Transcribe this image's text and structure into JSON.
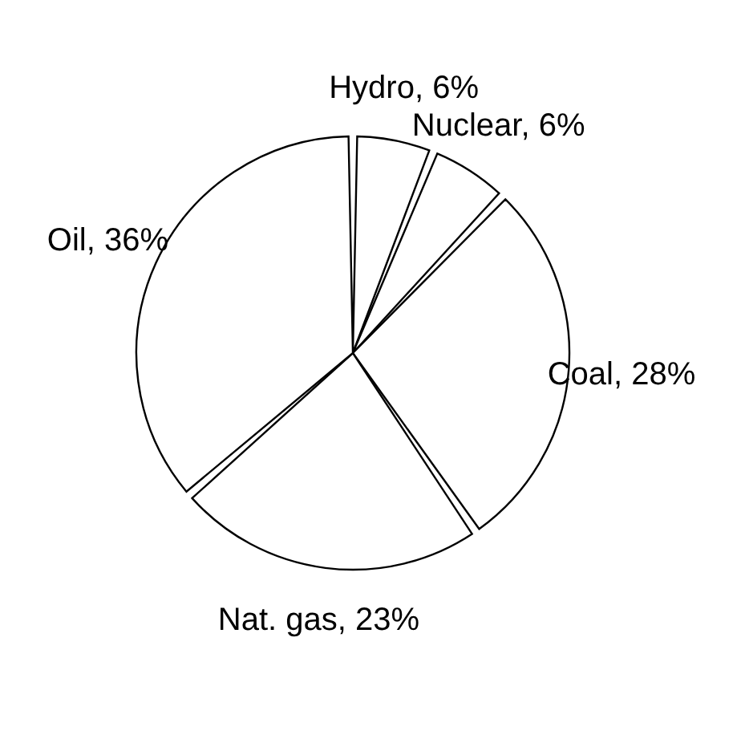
{
  "chart_data": {
    "type": "pie",
    "categories": [
      "Hydro",
      "Nuclear",
      "Coal",
      "Nat. gas",
      "Oil"
    ],
    "values": [
      6,
      6,
      28,
      23,
      36
    ],
    "value_labels": [
      "6%",
      "6%",
      "28%",
      "23%",
      "36%"
    ],
    "colors": [
      "#ffffff",
      "#ffffff",
      "#ffffff",
      "#ffffff",
      "#ffffff"
    ],
    "legend": false
  }
}
